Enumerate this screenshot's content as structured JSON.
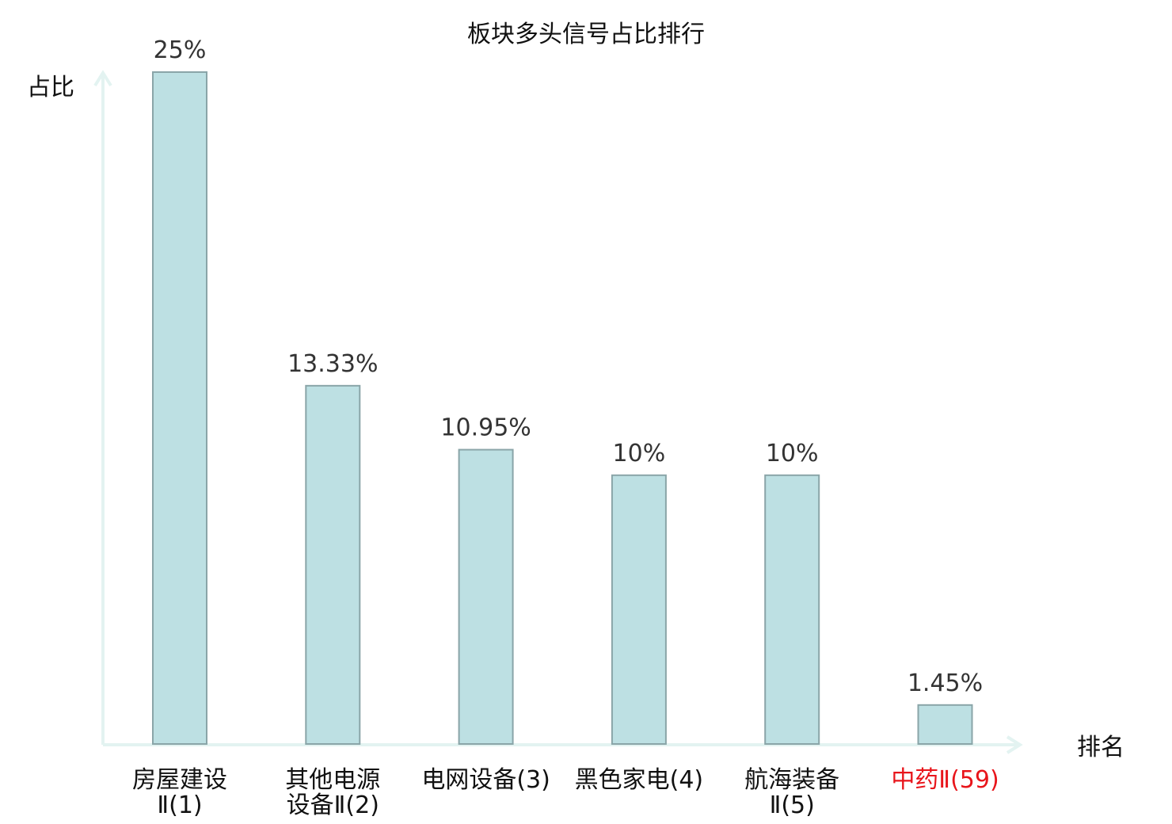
{
  "chart_data": {
    "type": "bar",
    "title": "板块多头信号占比排行",
    "ylabel": "占比",
    "xlabel": "排名",
    "ylim": [
      0,
      25
    ],
    "grid": false,
    "legend": "none",
    "categories": [
      {
        "lines": [
          "房屋建设",
          "Ⅱ(1)"
        ],
        "highlight": false
      },
      {
        "lines": [
          "其他电源",
          "设备Ⅱ(2)"
        ],
        "highlight": false
      },
      {
        "lines": [
          "电网设备(3)"
        ],
        "highlight": false
      },
      {
        "lines": [
          "黑色家电(4)"
        ],
        "highlight": false
      },
      {
        "lines": [
          "航海装备",
          "Ⅱ(5)"
        ],
        "highlight": false
      },
      {
        "lines": [
          "中药Ⅱ(59)"
        ],
        "highlight": true
      }
    ],
    "values": [
      25,
      13.33,
      10.95,
      10,
      10,
      1.45
    ],
    "value_labels": [
      "25%",
      "13.33%",
      "10.95%",
      "10%",
      "10%",
      "1.45%"
    ],
    "colors": {
      "bar_fill": "#bde0e3",
      "bar_stroke": "#8aa5a8",
      "axis": "#e3f3f1",
      "text": "#111111",
      "highlight": "#e8151b"
    }
  }
}
